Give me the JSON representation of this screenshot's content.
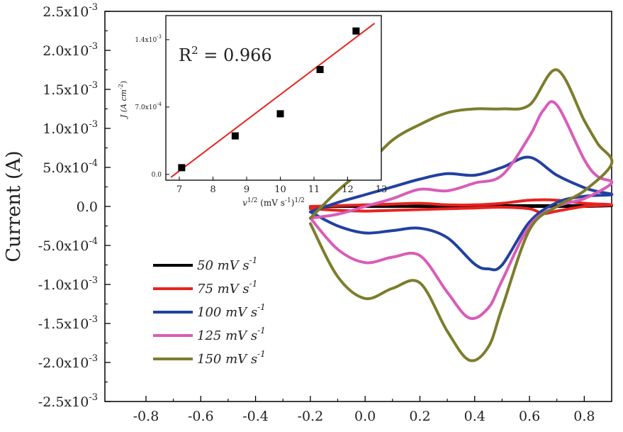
{
  "chart_data": [
    {
      "type": "line",
      "title": "",
      "xlabel": "",
      "ylabel": "Current (A)",
      "xlim": [
        -0.95,
        0.9
      ],
      "ylim": [
        -0.0025,
        0.0025
      ],
      "x_ticks": [
        -0.8,
        -0.6,
        -0.4,
        -0.2,
        0.0,
        0.2,
        0.4,
        0.6,
        0.8
      ],
      "x_tick_labels": [
        "-0.8",
        "-0.6",
        "-0.4",
        "-0.2",
        "0.0",
        "0.2",
        "0.4",
        "0.6",
        "0.8"
      ],
      "y_ticks": [
        -0.0025,
        -0.002,
        -0.0015,
        -0.001,
        -0.0005,
        0.0,
        0.0005,
        0.001,
        0.0015,
        0.002,
        0.0025
      ],
      "y_tick_labels": [
        {
          "mantissa": "-2.5x10",
          "exp": "-3"
        },
        {
          "mantissa": "-2.0x10",
          "exp": "-3"
        },
        {
          "mantissa": "-1.5x10",
          "exp": "-3"
        },
        {
          "mantissa": "-1.0x10",
          "exp": "-3"
        },
        {
          "mantissa": "-5.0x10",
          "exp": "-4"
        },
        {
          "mantissa": "0.0",
          "exp": ""
        },
        {
          "mantissa": "5.0x10",
          "exp": "-4"
        },
        {
          "mantissa": "1.0x10",
          "exp": "-3"
        },
        {
          "mantissa": "1.5x10",
          "exp": "-3"
        },
        {
          "mantissa": "2.0x10",
          "exp": "-3"
        },
        {
          "mantissa": "2.5x10",
          "exp": "-3"
        }
      ],
      "grid": false,
      "legend_position": "bottom-left",
      "series": [
        {
          "name": "50 mV s-1",
          "label": "50 mV s",
          "label_exp": "-1",
          "color": "#000000",
          "x": [
            -0.2,
            -0.1,
            0.0,
            0.1,
            0.2,
            0.3,
            0.4,
            0.5,
            0.6,
            0.7,
            0.8,
            0.9,
            0.8,
            0.7,
            0.6,
            0.5,
            0.4,
            0.3,
            0.2,
            0.1,
            0.0,
            -0.1,
            -0.2
          ],
          "y": [
            -1e-05,
            0.0,
            0.0,
            1e-05,
            1e-05,
            1e-05,
            1e-05,
            1e-05,
            1e-05,
            1e-05,
            1e-05,
            1e-05,
            0.0,
            0.0,
            0.0,
            0.0,
            0.0,
            0.0,
            0.0,
            0.0,
            0.0,
            0.0,
            -1e-05
          ]
        },
        {
          "name": "75 mV s-1",
          "label": "75 mV s",
          "label_exp": "-1",
          "color": "#e8231f",
          "x": [
            -0.2,
            -0.1,
            0.0,
            0.1,
            0.2,
            0.3,
            0.4,
            0.5,
            0.6,
            0.65,
            0.7,
            0.8,
            0.9,
            0.8,
            0.7,
            0.6,
            0.5,
            0.4,
            0.3,
            0.2,
            0.1,
            0.0,
            -0.1,
            -0.2
          ],
          "y": [
            -3e-05,
            -5e-05,
            -6e-05,
            -5e-05,
            -4e-05,
            -3e-05,
            -2e-05,
            -1e-05,
            -3e-05,
            -9e-05,
            -6e-05,
            0.0,
            2e-05,
            4e-05,
            8e-05,
            8e-05,
            4e-05,
            2e-05,
            2e-05,
            4e-05,
            3e-05,
            2e-05,
            1e-05,
            0.0
          ]
        },
        {
          "name": "100 mV s-1",
          "label": "100 mV s",
          "label_exp": "-1",
          "color": "#2141a1",
          "x": [
            -0.2,
            -0.1,
            0.0,
            0.1,
            0.2,
            0.3,
            0.4,
            0.45,
            0.5,
            0.6,
            0.7,
            0.8,
            0.9,
            0.85,
            0.8,
            0.7,
            0.6,
            0.5,
            0.4,
            0.3,
            0.2,
            0.1,
            0.0,
            -0.1,
            -0.2
          ],
          "y": [
            -7e-05,
            -0.00025,
            -0.00034,
            -0.00031,
            -0.00028,
            -0.0004,
            -0.00074,
            -0.0008,
            -0.00075,
            -0.0002,
            5e-05,
            0.00013,
            0.00015,
            0.00019,
            0.00024,
            0.0004,
            0.00063,
            0.0005,
            0.0004,
            0.00042,
            0.00035,
            0.00025,
            0.00015,
            5e-05,
            -7e-05
          ]
        },
        {
          "name": "125 mV s-1",
          "label": "125 mV s",
          "label_exp": "-1",
          "color": "#d95cb8",
          "x": [
            -0.2,
            -0.1,
            0.0,
            0.1,
            0.2,
            0.3,
            0.38,
            0.45,
            0.5,
            0.6,
            0.7,
            0.8,
            0.9,
            0.85,
            0.8,
            0.7,
            0.65,
            0.6,
            0.5,
            0.4,
            0.3,
            0.2,
            0.1,
            0.0,
            -0.1,
            -0.2
          ],
          "y": [
            -0.00015,
            -0.00055,
            -0.00072,
            -0.00065,
            -0.00063,
            -0.0011,
            -0.00143,
            -0.0013,
            -0.00095,
            -0.00025,
            0.0,
            0.0001,
            0.0003,
            0.00038,
            0.0006,
            0.0013,
            0.00123,
            0.0009,
            0.0004,
            0.0003,
            0.0002,
            0.00022,
            0.0001,
            0.0,
            -0.0001,
            -0.00015
          ]
        },
        {
          "name": "150 mV s-1",
          "label": "150 mV s",
          "label_exp": "-1",
          "color": "#7c7d2c",
          "x": [
            -0.2,
            -0.1,
            0.0,
            0.1,
            0.2,
            0.3,
            0.38,
            0.45,
            0.5,
            0.6,
            0.7,
            0.8,
            0.9,
            0.85,
            0.8,
            0.7,
            0.6,
            0.5,
            0.4,
            0.3,
            0.2,
            0.1,
            0.0,
            -0.1,
            -0.2
          ],
          "y": [
            -0.00022,
            -0.0009,
            -0.00118,
            -0.00105,
            -0.00098,
            -0.0016,
            -0.00197,
            -0.0018,
            -0.0013,
            -0.0003,
            0.0,
            0.0002,
            0.00055,
            0.0008,
            0.0011,
            0.00175,
            0.0013,
            0.00125,
            0.00125,
            0.0012,
            0.00105,
            0.00085,
            0.0005,
            0.0002,
            -0.00015
          ]
        }
      ]
    },
    {
      "type": "scatter",
      "title": "",
      "xlabel": "v",
      "xlabel_sup": "1/2",
      "xlabel_rest": " (mV s",
      "xlabel_sup2": "-1",
      "xlabel_end": ")",
      "xlabel_sup3": "1/2",
      "ylabel": "J (A cm",
      "ylabel_sup": "-2",
      "ylabel_end": ")",
      "xlim": [
        6.6,
        13
      ],
      "ylim": [
        -6e-05,
        0.00165
      ],
      "x_ticks": [
        7,
        8,
        9,
        10,
        11,
        12,
        13
      ],
      "x_tick_labels": [
        "7",
        "8",
        "9",
        "10",
        "11",
        "12",
        "13"
      ],
      "y_ticks": [
        0.0,
        0.0007,
        0.0014
      ],
      "y_tick_labels": [
        {
          "mantissa": "0.0",
          "exp": ""
        },
        {
          "mantissa": "7.0x10",
          "exp": "-4"
        },
        {
          "mantissa": "1.4x10",
          "exp": "-3"
        }
      ],
      "annotation": {
        "text": "R",
        "sup": "2",
        "rest": " = 0.966"
      },
      "points": {
        "x": [
          7.07,
          8.66,
          10.0,
          11.18,
          12.25
        ],
        "y": [
          7e-05,
          0.0004,
          0.00063,
          0.00109,
          0.00149
        ],
        "color": "#000000"
      },
      "fit_line": {
        "x": [
          6.75,
          12.8
        ],
        "y": [
          -3e-05,
          0.00157
        ],
        "color": "#e8231f"
      }
    }
  ]
}
